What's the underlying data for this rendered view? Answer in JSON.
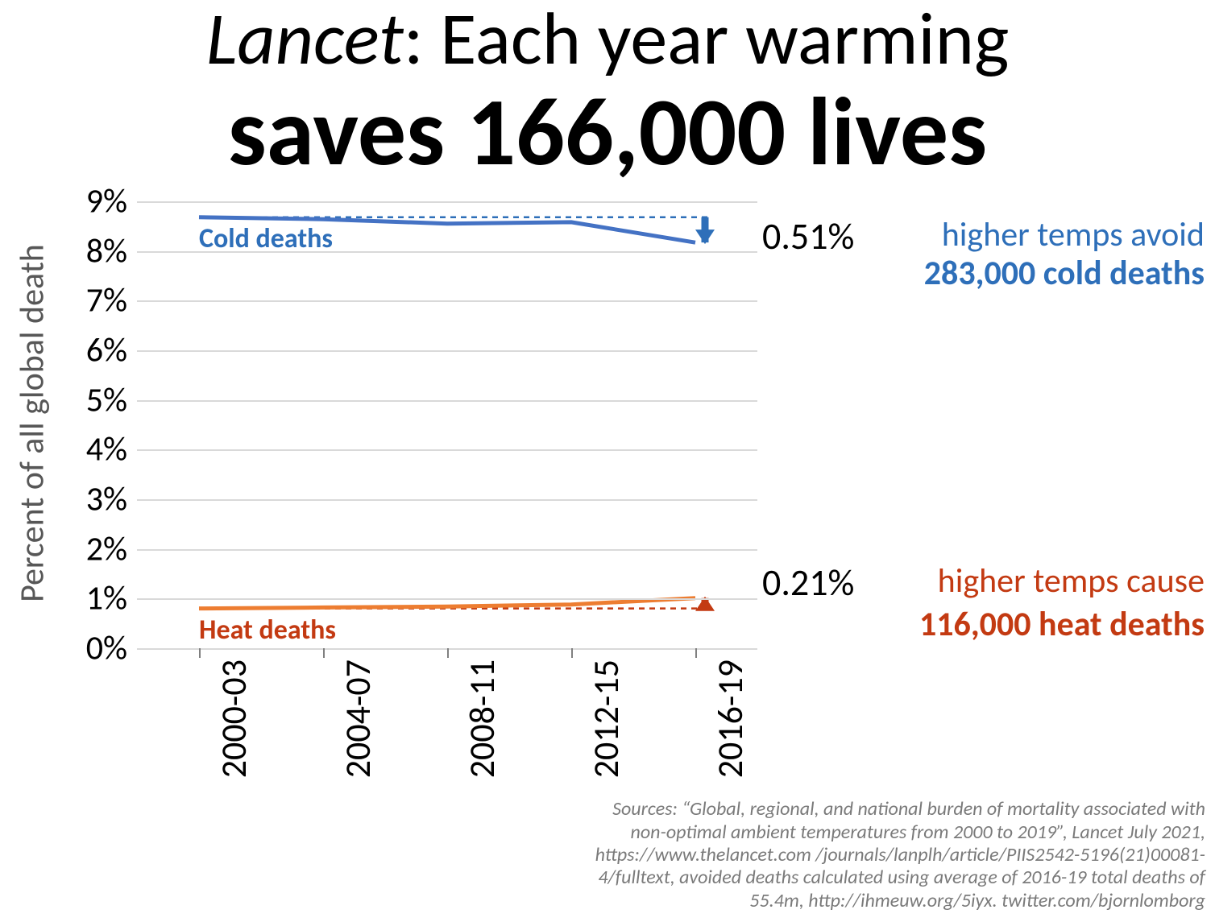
{
  "title": {
    "line1_italic": "Lancet",
    "line1_rest": ": Each year warming",
    "line2": "saves 166,000 lives",
    "line1_fontsize": 92,
    "line2_fontsize": 120,
    "color": "#000000"
  },
  "chart": {
    "type": "line",
    "y_axis_title": "Percent of all global death",
    "y_axis_title_fontsize": 42,
    "y_axis_title_color": "#575757",
    "background_color": "#ffffff",
    "grid_color": "#d9d9d9",
    "ylim": [
      0,
      9
    ],
    "ytick_step": 1,
    "ytick_suffix": "%",
    "ytick_fontsize": 42,
    "x_categories": [
      "2000-03",
      "2004-07",
      "2008-11",
      "2012-15",
      "2016-19"
    ],
    "xtick_fontsize": 44,
    "xtick_rotation": -90,
    "series": {
      "cold": {
        "label": "Cold deaths",
        "label_color": "#2e6fb9",
        "line_color": "#4472c4",
        "line_width": 5,
        "values": [
          8.68,
          8.64,
          8.55,
          8.58,
          8.17
        ],
        "reference_dash_value": 8.68,
        "dash_color": "#2e6fb9",
        "arrow_color": "#2e6fb9",
        "change_label": "0.51%"
      },
      "heat": {
        "label": "Heat deaths",
        "label_color": "#c33a12",
        "line_color": "#ed7d31",
        "line_width": 5,
        "values": [
          0.8,
          0.82,
          0.84,
          0.88,
          1.01
        ],
        "reference_dash_value": 0.8,
        "dash_color": "#c33a12",
        "arrow_color": "#c33a12",
        "change_label": "0.21%"
      }
    }
  },
  "callouts": {
    "cold": {
      "pct": "0.51%",
      "line1": "higher temps avoid",
      "line2": "283,000 cold deaths",
      "line1_color": "#2e6fb9",
      "line2_color": "#2e6fb9"
    },
    "heat": {
      "pct": "0.21%",
      "line1": "higher temps cause",
      "line2": "116,000 heat deaths",
      "line1_color": "#c33a12",
      "line2_color": "#c33a12"
    }
  },
  "sources": {
    "text": "Sources: “Global, regional, and national burden of mortality associated with non-optimal ambient temperatures from 2000 to 2019”, Lancet July 2021, https://www.thelancet.com /journals/lanplh/article/PIIS2542-5196(21)00081-4/fulltext, avoided deaths calculated using average of 2016-19 total deaths of 55.4m, http://ihmeuw.org/5iyx. twitter.com/bjornlomborg",
    "fontsize": 24,
    "color": "#7a7a7a"
  }
}
